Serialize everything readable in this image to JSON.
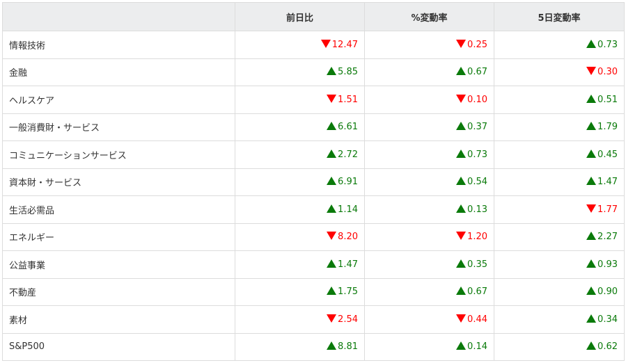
{
  "headers": [
    "",
    "前日比",
    "%変動率",
    "5日変動率"
  ],
  "colors": {
    "up": "#0a7a0a",
    "down": "#ff0000"
  },
  "rows": [
    {
      "name": "情報技術",
      "cells": [
        {
          "dir": "down",
          "value": "12.47"
        },
        {
          "dir": "down",
          "value": "0.25"
        },
        {
          "dir": "up",
          "value": "0.73"
        }
      ]
    },
    {
      "name": "金融",
      "cells": [
        {
          "dir": "up",
          "value": "5.85"
        },
        {
          "dir": "up",
          "value": "0.67"
        },
        {
          "dir": "down",
          "value": "0.30"
        }
      ]
    },
    {
      "name": "ヘルスケア",
      "cells": [
        {
          "dir": "down",
          "value": "1.51"
        },
        {
          "dir": "down",
          "value": "0.10"
        },
        {
          "dir": "up",
          "value": "0.51"
        }
      ]
    },
    {
      "name": "一般消費財・サービス",
      "cells": [
        {
          "dir": "up",
          "value": "6.61"
        },
        {
          "dir": "up",
          "value": "0.37"
        },
        {
          "dir": "up",
          "value": "1.79"
        }
      ]
    },
    {
      "name": "コミュニケーションサービス",
      "cells": [
        {
          "dir": "up",
          "value": "2.72"
        },
        {
          "dir": "up",
          "value": "0.73"
        },
        {
          "dir": "up",
          "value": "0.45"
        }
      ]
    },
    {
      "name": "資本財・サービス",
      "cells": [
        {
          "dir": "up",
          "value": "6.91"
        },
        {
          "dir": "up",
          "value": "0.54"
        },
        {
          "dir": "up",
          "value": "1.47"
        }
      ]
    },
    {
      "name": "生活必需品",
      "cells": [
        {
          "dir": "up",
          "value": "1.14"
        },
        {
          "dir": "up",
          "value": "0.13"
        },
        {
          "dir": "down",
          "value": "1.77"
        }
      ]
    },
    {
      "name": "エネルギー",
      "cells": [
        {
          "dir": "down",
          "value": "8.20"
        },
        {
          "dir": "down",
          "value": "1.20"
        },
        {
          "dir": "up",
          "value": "2.27"
        }
      ]
    },
    {
      "name": "公益事業",
      "cells": [
        {
          "dir": "up",
          "value": "1.47"
        },
        {
          "dir": "up",
          "value": "0.35"
        },
        {
          "dir": "up",
          "value": "0.93"
        }
      ]
    },
    {
      "name": "不動産",
      "cells": [
        {
          "dir": "up",
          "value": "1.75"
        },
        {
          "dir": "up",
          "value": "0.67"
        },
        {
          "dir": "up",
          "value": "0.90"
        }
      ]
    },
    {
      "name": "素材",
      "cells": [
        {
          "dir": "down",
          "value": "2.54"
        },
        {
          "dir": "down",
          "value": "0.44"
        },
        {
          "dir": "up",
          "value": "0.34"
        }
      ]
    },
    {
      "name": "S&P500",
      "cells": [
        {
          "dir": "up",
          "value": "8.81"
        },
        {
          "dir": "up",
          "value": "0.14"
        },
        {
          "dir": "up",
          "value": "0.62"
        }
      ]
    }
  ]
}
